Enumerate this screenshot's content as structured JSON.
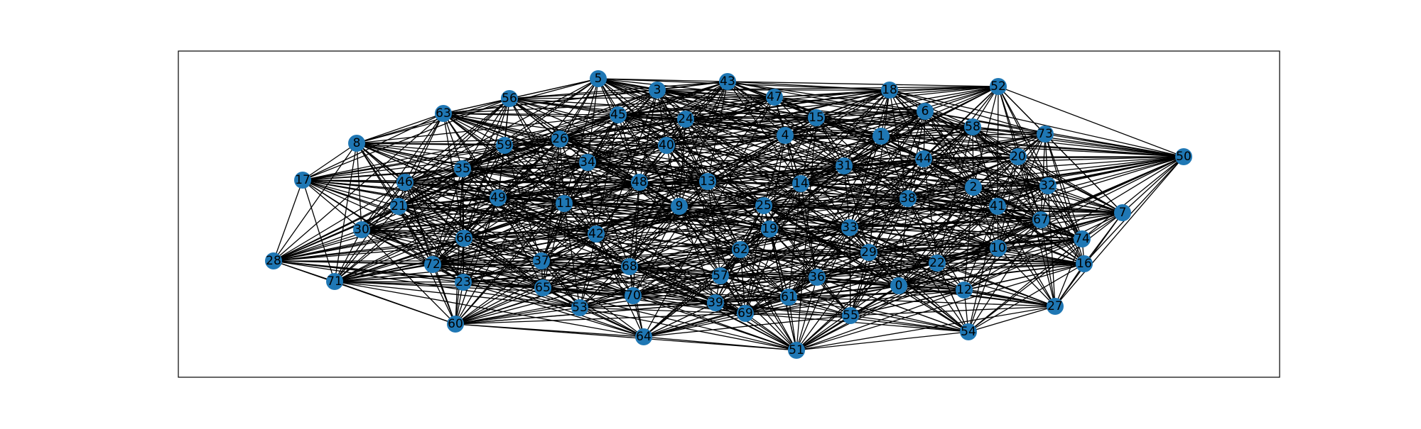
{
  "graph": {
    "node_color": "#1f77b4",
    "edge_color": "#000000",
    "frame_color": "#000000",
    "background": "#ffffff",
    "nodes": [
      "0",
      "1",
      "2",
      "3",
      "4",
      "5",
      "6",
      "7",
      "8",
      "9",
      "10",
      "11",
      "12",
      "13",
      "14",
      "15",
      "16",
      "17",
      "18",
      "19",
      "20",
      "21",
      "22",
      "23",
      "24",
      "25",
      "26",
      "27",
      "28",
      "29",
      "30",
      "31",
      "32",
      "33",
      "34",
      "35",
      "36",
      "37",
      "38",
      "39",
      "40",
      "41",
      "42",
      "43",
      "44",
      "45",
      "46",
      "47",
      "48",
      "49",
      "50",
      "51",
      "52",
      "53",
      "54",
      "55",
      "56",
      "57",
      "58",
      "59",
      "60",
      "61",
      "62",
      "63",
      "64",
      "65",
      "66",
      "67",
      "68",
      "69",
      "70",
      "71",
      "72",
      "73",
      "74"
    ]
  }
}
